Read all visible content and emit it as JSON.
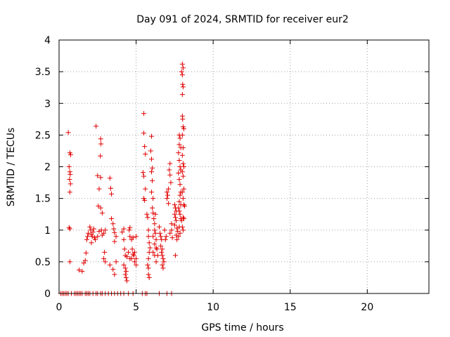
{
  "chart_data": {
    "type": "scatter",
    "title": "Day 091 of 2024, SRMTID for receiver eur2",
    "xlabel": "GPS time / hours",
    "ylabel": "SRMTID / TECUs",
    "xlim": [
      0,
      24
    ],
    "ylim": [
      0,
      4
    ],
    "xticks": [
      0,
      5,
      10,
      15,
      20
    ],
    "yticks": [
      0,
      0.5,
      1,
      1.5,
      2,
      2.5,
      3,
      3.5,
      4
    ],
    "xtick_labels": [
      "0",
      "5",
      "10",
      "15",
      "20"
    ],
    "ytick_labels": [
      "0",
      "0.5",
      "1",
      "1.5",
      "2",
      "2.5",
      "3",
      "3.5",
      "4"
    ],
    "grid": true,
    "marker": "+",
    "color": "#e00000",
    "series": [
      {
        "name": "SRMTID",
        "points": [
          [
            0.6,
            2.54
          ],
          [
            0.7,
            2.22
          ],
          [
            0.75,
            2.19
          ],
          [
            0.65,
            2.0
          ],
          [
            0.7,
            1.92
          ],
          [
            0.72,
            1.88
          ],
          [
            0.68,
            1.8
          ],
          [
            0.74,
            1.73
          ],
          [
            0.7,
            1.6
          ],
          [
            0.65,
            1.04
          ],
          [
            0.7,
            1.02
          ],
          [
            0.7,
            0.5
          ],
          [
            1.3,
            0.37
          ],
          [
            1.5,
            0.35
          ],
          [
            1.6,
            0.48
          ],
          [
            1.7,
            0.52
          ],
          [
            1.75,
            0.64
          ],
          [
            1.8,
            0.85
          ],
          [
            1.85,
            0.9
          ],
          [
            1.9,
            0.95
          ],
          [
            2.0,
            1.05
          ],
          [
            2.05,
            1.0
          ],
          [
            2.1,
            0.93
          ],
          [
            2.15,
            0.9
          ],
          [
            2.1,
            0.8
          ],
          [
            2.2,
            0.97
          ],
          [
            2.25,
            1.02
          ],
          [
            2.3,
            0.88
          ],
          [
            2.35,
            0.85
          ],
          [
            2.4,
            2.64
          ],
          [
            2.7,
            2.44
          ],
          [
            2.72,
            2.36
          ],
          [
            2.68,
            2.17
          ],
          [
            2.5,
            1.86
          ],
          [
            2.7,
            1.83
          ],
          [
            2.6,
            1.65
          ],
          [
            2.55,
            1.38
          ],
          [
            2.7,
            1.35
          ],
          [
            2.8,
            1.27
          ],
          [
            2.75,
            1.0
          ],
          [
            2.8,
            0.92
          ],
          [
            2.9,
            0.95
          ],
          [
            2.95,
            0.65
          ],
          [
            2.9,
            0.55
          ],
          [
            3.0,
            0.5
          ],
          [
            3.0,
            1.0
          ],
          [
            2.6,
            0.98
          ],
          [
            2.5,
            0.9
          ],
          [
            3.3,
            1.82
          ],
          [
            3.35,
            1.66
          ],
          [
            3.4,
            1.57
          ],
          [
            3.4,
            1.18
          ],
          [
            3.5,
            1.1
          ],
          [
            3.55,
            1.02
          ],
          [
            3.6,
            0.96
          ],
          [
            3.7,
            0.9
          ],
          [
            3.6,
            0.82
          ],
          [
            3.3,
            0.45
          ],
          [
            3.5,
            0.38
          ],
          [
            3.6,
            0.3
          ],
          [
            3.7,
            0.5
          ],
          [
            4.1,
            0.97
          ],
          [
            4.2,
            1.02
          ],
          [
            4.2,
            0.85
          ],
          [
            4.25,
            0.7
          ],
          [
            4.3,
            0.6
          ],
          [
            4.2,
            0.45
          ],
          [
            4.3,
            0.4
          ],
          [
            4.35,
            0.35
          ],
          [
            4.3,
            0.3
          ],
          [
            4.35,
            0.25
          ],
          [
            4.4,
            0.2
          ],
          [
            4.4,
            0.58
          ],
          [
            4.5,
            0.65
          ],
          [
            4.55,
            1.0
          ],
          [
            4.6,
            1.04
          ],
          [
            4.6,
            0.9
          ],
          [
            4.7,
            0.85
          ],
          [
            4.75,
            0.7
          ],
          [
            4.8,
            0.62
          ],
          [
            4.7,
            0.55
          ],
          [
            4.85,
            0.6
          ],
          [
            4.9,
            0.65
          ],
          [
            5.0,
            0.55
          ],
          [
            5.0,
            0.45
          ],
          [
            4.9,
            0.5
          ],
          [
            4.6,
            0.55
          ],
          [
            4.8,
            0.88
          ],
          [
            5.0,
            0.9
          ],
          [
            5.5,
            2.84
          ],
          [
            5.5,
            2.53
          ],
          [
            5.55,
            2.32
          ],
          [
            5.6,
            2.2
          ],
          [
            5.45,
            1.91
          ],
          [
            5.5,
            1.85
          ],
          [
            5.6,
            1.65
          ],
          [
            5.5,
            1.5
          ],
          [
            5.55,
            1.47
          ],
          [
            5.7,
            1.25
          ],
          [
            5.75,
            1.2
          ],
          [
            5.8,
            1.0
          ],
          [
            5.8,
            0.9
          ],
          [
            5.85,
            0.8
          ],
          [
            5.9,
            0.72
          ],
          [
            5.85,
            0.65
          ],
          [
            5.8,
            0.55
          ],
          [
            5.75,
            0.45
          ],
          [
            5.8,
            0.4
          ],
          [
            5.8,
            0.3
          ],
          [
            5.85,
            0.25
          ],
          [
            6.0,
            2.48
          ],
          [
            5.95,
            2.25
          ],
          [
            6.0,
            2.12
          ],
          [
            6.05,
            1.98
          ],
          [
            6.0,
            1.92
          ],
          [
            6.05,
            1.78
          ],
          [
            6.0,
            1.6
          ],
          [
            6.1,
            1.5
          ],
          [
            6.05,
            1.35
          ],
          [
            6.1,
            1.27
          ],
          [
            6.15,
            1.18
          ],
          [
            6.2,
            1.1
          ],
          [
            6.2,
            1.0
          ],
          [
            6.25,
            0.95
          ],
          [
            6.1,
            0.9
          ],
          [
            6.3,
            0.85
          ],
          [
            6.2,
            0.78
          ],
          [
            6.3,
            0.72
          ],
          [
            6.35,
            0.7
          ],
          [
            6.1,
            0.65
          ],
          [
            6.2,
            0.6
          ],
          [
            6.4,
            0.6
          ],
          [
            6.3,
            0.5
          ],
          [
            6.25,
            1.25
          ],
          [
            6.5,
            1.05
          ],
          [
            6.55,
            0.95
          ],
          [
            6.6,
            0.9
          ],
          [
            6.65,
            0.85
          ],
          [
            6.6,
            0.75
          ],
          [
            6.7,
            0.7
          ],
          [
            6.65,
            0.65
          ],
          [
            6.7,
            0.6
          ],
          [
            6.75,
            0.55
          ],
          [
            6.8,
            0.5
          ],
          [
            6.7,
            0.45
          ],
          [
            6.75,
            0.4
          ],
          [
            6.9,
            0.85
          ],
          [
            6.95,
            0.9
          ],
          [
            6.85,
            1.0
          ],
          [
            7.0,
            1.6
          ],
          [
            7.05,
            1.55
          ],
          [
            7.1,
            1.65
          ],
          [
            7.0,
            1.5
          ],
          [
            7.1,
            1.42
          ],
          [
            7.2,
            2.05
          ],
          [
            7.15,
            1.95
          ],
          [
            7.2,
            1.87
          ],
          [
            7.25,
            1.75
          ],
          [
            7.3,
            1.1
          ],
          [
            7.3,
            1.0
          ],
          [
            7.2,
            0.95
          ],
          [
            7.35,
            0.88
          ],
          [
            7.5,
            1.4
          ],
          [
            7.55,
            1.35
          ],
          [
            7.6,
            1.3
          ],
          [
            7.5,
            1.25
          ],
          [
            7.55,
            1.2
          ],
          [
            7.6,
            1.15
          ],
          [
            7.5,
            1.08
          ],
          [
            7.65,
            1.03
          ],
          [
            7.7,
            0.98
          ],
          [
            7.6,
            0.92
          ],
          [
            7.55,
            0.6
          ],
          [
            7.65,
            0.85
          ],
          [
            7.8,
            2.5
          ],
          [
            7.85,
            2.45
          ],
          [
            7.8,
            2.35
          ],
          [
            7.9,
            2.3
          ],
          [
            7.75,
            2.22
          ],
          [
            7.8,
            2.1
          ],
          [
            7.85,
            2.0
          ],
          [
            7.9,
            1.95
          ],
          [
            7.75,
            1.9
          ],
          [
            7.8,
            1.8
          ],
          [
            7.85,
            1.72
          ],
          [
            7.9,
            1.6
          ],
          [
            7.85,
            1.55
          ],
          [
            7.8,
            1.45
          ],
          [
            7.9,
            1.4
          ],
          [
            7.75,
            1.35
          ],
          [
            7.8,
            1.3
          ],
          [
            7.85,
            1.25
          ],
          [
            7.9,
            1.18
          ],
          [
            7.95,
            1.15
          ],
          [
            7.8,
            1.05
          ],
          [
            7.85,
            0.95
          ],
          [
            7.75,
            0.9
          ],
          [
            8.0,
            3.62
          ],
          [
            8.05,
            3.56
          ],
          [
            7.95,
            3.5
          ],
          [
            8.0,
            3.45
          ],
          [
            8.02,
            3.3
          ],
          [
            8.05,
            3.26
          ],
          [
            8.0,
            3.14
          ],
          [
            8.0,
            2.8
          ],
          [
            8.02,
            2.75
          ],
          [
            8.05,
            2.63
          ],
          [
            8.1,
            2.6
          ],
          [
            8.0,
            2.5
          ],
          [
            8.05,
            2.3
          ],
          [
            8.0,
            2.18
          ],
          [
            8.05,
            2.05
          ],
          [
            8.1,
            2.0
          ],
          [
            8.0,
            1.92
          ],
          [
            8.05,
            1.85
          ],
          [
            8.1,
            1.65
          ],
          [
            8.0,
            1.6
          ],
          [
            8.05,
            1.5
          ],
          [
            8.1,
            1.4
          ],
          [
            8.15,
            1.38
          ],
          [
            8.05,
            1.2
          ],
          [
            8.1,
            1.18
          ],
          [
            8.0,
            1.05
          ],
          [
            8.05,
            1.0
          ],
          [
            0.1,
            0
          ],
          [
            0.2,
            0
          ],
          [
            0.3,
            0
          ],
          [
            0.4,
            0
          ],
          [
            0.5,
            0
          ],
          [
            0.6,
            0
          ],
          [
            0.8,
            0
          ],
          [
            1.0,
            0
          ],
          [
            1.1,
            0
          ],
          [
            1.2,
            0
          ],
          [
            1.3,
            0
          ],
          [
            1.4,
            0
          ],
          [
            1.5,
            0
          ],
          [
            1.7,
            0
          ],
          [
            1.8,
            0
          ],
          [
            1.9,
            0
          ],
          [
            2.0,
            0
          ],
          [
            2.2,
            0
          ],
          [
            2.4,
            0
          ],
          [
            2.5,
            0
          ],
          [
            2.7,
            0
          ],
          [
            2.8,
            0
          ],
          [
            3.0,
            0
          ],
          [
            3.2,
            0
          ],
          [
            3.4,
            0
          ],
          [
            3.6,
            0
          ],
          [
            3.8,
            0
          ],
          [
            4.0,
            0
          ],
          [
            4.2,
            0
          ],
          [
            4.5,
            0
          ],
          [
            4.8,
            0
          ],
          [
            5.4,
            0
          ],
          [
            5.6,
            0
          ],
          [
            5.7,
            0
          ],
          [
            6.5,
            0
          ],
          [
            7.0,
            0
          ],
          [
            7.3,
            0
          ]
        ]
      }
    ]
  }
}
